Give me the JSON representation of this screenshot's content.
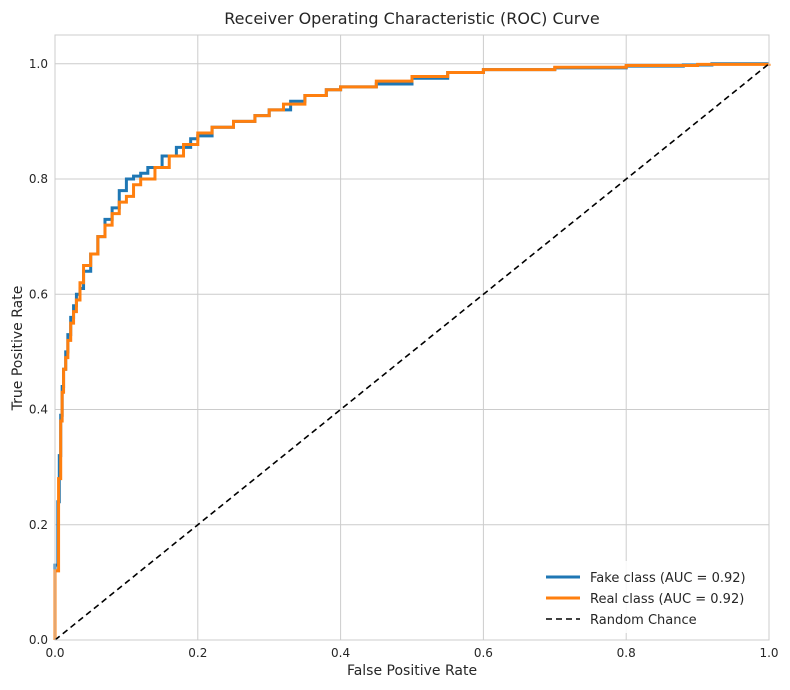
{
  "chart_data": {
    "type": "line",
    "title": "Receiver Operating Characteristic (ROC) Curve",
    "xlabel": "False Positive Rate",
    "ylabel": "True Positive Rate",
    "xlim": [
      0.0,
      1.0
    ],
    "ylim": [
      0.0,
      1.05
    ],
    "xticks": [
      0.0,
      0.2,
      0.4,
      0.6,
      0.8,
      1.0
    ],
    "yticks": [
      0.0,
      0.2,
      0.4,
      0.6,
      0.8,
      1.0
    ],
    "grid": true,
    "legend_position": "lower-right",
    "series": [
      {
        "name": "Fake class (AUC = 0.92)",
        "color": "#1f77b4",
        "style": "step",
        "x": [
          0.0,
          0.0,
          0.004,
          0.006,
          0.008,
          0.01,
          0.012,
          0.015,
          0.018,
          0.022,
          0.026,
          0.03,
          0.035,
          0.04,
          0.05,
          0.06,
          0.07,
          0.08,
          0.09,
          0.1,
          0.11,
          0.12,
          0.13,
          0.15,
          0.17,
          0.19,
          0.2,
          0.22,
          0.25,
          0.28,
          0.3,
          0.33,
          0.35,
          0.38,
          0.4,
          0.45,
          0.5,
          0.55,
          0.6,
          0.7,
          0.8,
          0.88,
          0.92,
          1.0
        ],
        "y": [
          0.0,
          0.13,
          0.24,
          0.32,
          0.39,
          0.44,
          0.47,
          0.5,
          0.53,
          0.56,
          0.58,
          0.6,
          0.61,
          0.64,
          0.67,
          0.7,
          0.73,
          0.75,
          0.78,
          0.8,
          0.805,
          0.81,
          0.82,
          0.84,
          0.855,
          0.87,
          0.875,
          0.89,
          0.9,
          0.91,
          0.92,
          0.935,
          0.945,
          0.955,
          0.96,
          0.965,
          0.975,
          0.985,
          0.99,
          0.993,
          0.996,
          0.998,
          1.0,
          1.0
        ]
      },
      {
        "name": "Real class (AUC = 0.92)",
        "color": "#ff7f0e",
        "style": "step",
        "x": [
          0.0,
          0.0,
          0.005,
          0.008,
          0.01,
          0.012,
          0.015,
          0.018,
          0.022,
          0.026,
          0.03,
          0.035,
          0.04,
          0.05,
          0.06,
          0.07,
          0.08,
          0.09,
          0.1,
          0.11,
          0.12,
          0.14,
          0.16,
          0.18,
          0.2,
          0.22,
          0.25,
          0.28,
          0.3,
          0.32,
          0.35,
          0.38,
          0.4,
          0.45,
          0.5,
          0.55,
          0.6,
          0.7,
          0.8,
          0.9,
          1.0
        ],
        "y": [
          0.0,
          0.12,
          0.28,
          0.38,
          0.43,
          0.47,
          0.49,
          0.52,
          0.55,
          0.57,
          0.59,
          0.62,
          0.65,
          0.67,
          0.7,
          0.72,
          0.74,
          0.76,
          0.77,
          0.79,
          0.8,
          0.82,
          0.84,
          0.86,
          0.88,
          0.89,
          0.9,
          0.91,
          0.92,
          0.93,
          0.945,
          0.955,
          0.96,
          0.97,
          0.978,
          0.985,
          0.99,
          0.994,
          0.997,
          0.999,
          1.0
        ]
      },
      {
        "name": "Random Chance",
        "color": "#000000",
        "style": "dashed",
        "x": [
          0.0,
          1.0
        ],
        "y": [
          0.0,
          1.0
        ]
      }
    ]
  }
}
